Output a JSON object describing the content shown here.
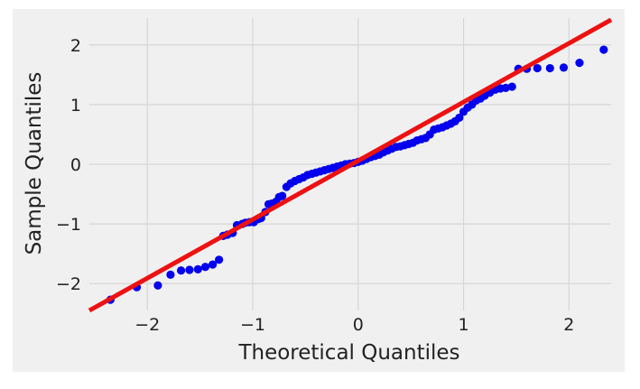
{
  "chart_data": {
    "type": "scatter",
    "title": "",
    "xlabel": "Theoretical Quantiles",
    "ylabel": "Sample Quantiles",
    "xlim": [
      -2.55,
      2.4
    ],
    "ylim": [
      -2.45,
      2.45
    ],
    "x_ticks": [
      -2,
      -1,
      0,
      1,
      2
    ],
    "y_ticks": [
      -2,
      -1,
      0,
      1,
      2
    ],
    "x_tick_labels": [
      "−2",
      "−1",
      "0",
      "1",
      "2"
    ],
    "y_tick_labels": [
      "−2",
      "−1",
      "0",
      "1",
      "2"
    ],
    "grid": true,
    "legend": "none",
    "colors": {
      "points": "#0000ee",
      "line": "#ee1111",
      "background": "#f0f0f0",
      "grid": "#d6d6d6"
    },
    "series": [
      {
        "kind": "points",
        "x": [
          -2.35,
          -2.1,
          -1.9,
          -1.78,
          -1.68,
          -1.6,
          -1.52,
          -1.45,
          -1.38,
          -1.32,
          -1.28,
          -1.24,
          -1.19,
          -1.15,
          -1.1,
          -1.07,
          -1.03,
          -0.99,
          -0.95,
          -0.92,
          -0.88,
          -0.85,
          -0.82,
          -0.78,
          -0.75,
          -0.72,
          -0.68,
          -0.64,
          -0.6,
          -0.56,
          -0.52,
          -0.48,
          -0.44,
          -0.4,
          -0.36,
          -0.32,
          -0.28,
          -0.24,
          -0.2,
          -0.16,
          -0.12,
          -0.08,
          -0.04,
          0.0,
          0.04,
          0.08,
          0.12,
          0.16,
          0.2,
          0.24,
          0.28,
          0.32,
          0.36,
          0.4,
          0.44,
          0.48,
          0.52,
          0.56,
          0.6,
          0.64,
          0.68,
          0.72,
          0.76,
          0.8,
          0.84,
          0.88,
          0.92,
          0.96,
          1.0,
          1.04,
          1.08,
          1.12,
          1.16,
          1.2,
          1.25,
          1.3,
          1.35,
          1.4,
          1.46,
          1.52,
          1.6,
          1.7,
          1.82,
          1.95,
          2.1,
          2.33
        ],
        "y": [
          -2.27,
          -2.06,
          -2.03,
          -1.85,
          -1.78,
          -1.77,
          -1.76,
          -1.72,
          -1.68,
          -1.6,
          -1.2,
          -1.18,
          -1.15,
          -1.02,
          -1.0,
          -0.98,
          -0.97,
          -0.97,
          -0.92,
          -0.9,
          -0.8,
          -0.67,
          -0.66,
          -0.63,
          -0.55,
          -0.53,
          -0.38,
          -0.32,
          -0.28,
          -0.25,
          -0.22,
          -0.18,
          -0.16,
          -0.14,
          -0.12,
          -0.1,
          -0.08,
          -0.06,
          -0.04,
          -0.02,
          0.0,
          0.01,
          0.02,
          0.04,
          0.06,
          0.09,
          0.12,
          0.14,
          0.16,
          0.2,
          0.23,
          0.26,
          0.29,
          0.3,
          0.32,
          0.34,
          0.36,
          0.4,
          0.42,
          0.44,
          0.5,
          0.58,
          0.6,
          0.62,
          0.65,
          0.68,
          0.72,
          0.78,
          0.88,
          0.95,
          1.0,
          1.07,
          1.1,
          1.15,
          1.2,
          1.25,
          1.27,
          1.28,
          1.3,
          1.6,
          1.6,
          1.61,
          1.61,
          1.62,
          1.7,
          1.92
        ]
      },
      {
        "kind": "line",
        "x": [
          -2.55,
          2.4
        ],
        "y": [
          -2.45,
          2.42
        ]
      }
    ]
  }
}
